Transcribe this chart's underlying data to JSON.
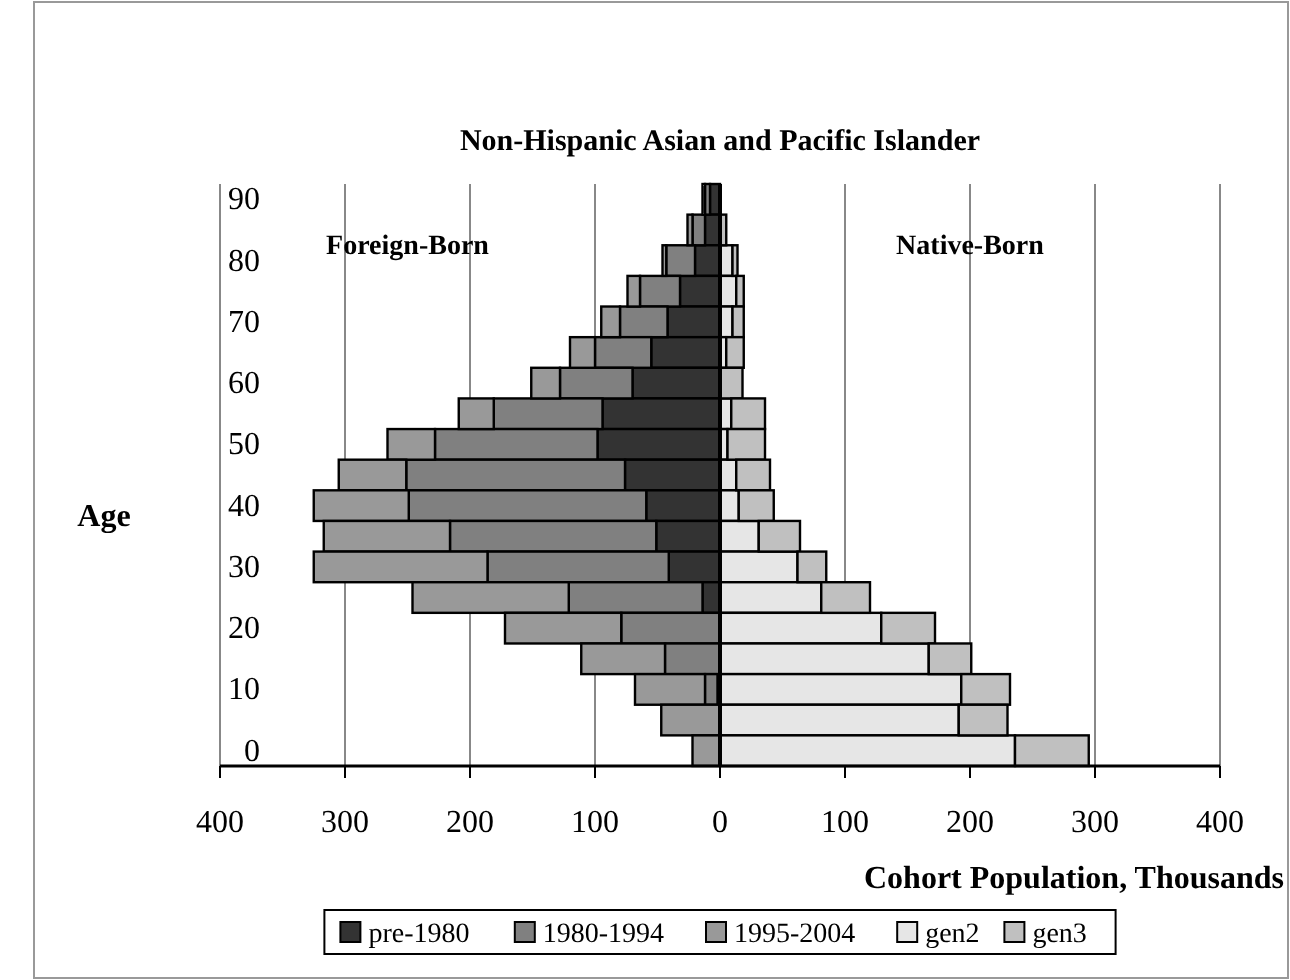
{
  "chart_data": {
    "type": "bar",
    "orientation": "horizontal",
    "stacked": true,
    "title": "Non-Hispanic Asian and Pacific Islander",
    "xlabel": "Cohort Population, Thousands",
    "ylabel": "Age",
    "annotations": [
      "Foreign-Born",
      "Native-Born"
    ],
    "categories": [
      "90",
      null,
      "80",
      null,
      "70",
      null,
      "60",
      null,
      "50",
      null,
      "40",
      null,
      "30",
      null,
      "20",
      null,
      "10",
      null,
      "0"
    ],
    "series": [
      {
        "name": "pre-1980",
        "color": "#333333",
        "values": [
          -8,
          -12,
          -20,
          -32,
          -42,
          -55,
          -70,
          -94,
          -98,
          -76,
          -59,
          -51,
          -41,
          -14,
          0,
          0,
          -2,
          0,
          0
        ]
      },
      {
        "name": "1980-1994",
        "color": "#808080",
        "values": [
          -4,
          -10,
          -23,
          -32,
          -38,
          -45,
          -58,
          -87,
          -130,
          -175,
          -190,
          -165,
          -145,
          -107,
          -79,
          -44,
          -10,
          0,
          0
        ]
      },
      {
        "name": "1995-2004",
        "color": "#999999",
        "values": [
          -2,
          -4,
          -3,
          -10,
          -15,
          -20,
          -23,
          -28,
          -38,
          -54,
          -76,
          -101,
          -139,
          -125,
          -93,
          -67,
          -56,
          -47,
          -22
        ]
      },
      {
        "name": "gen2",
        "color": "#e6e6e6",
        "values": [
          0,
          0,
          10,
          13,
          10,
          5,
          null,
          9,
          6,
          13,
          15,
          31,
          62,
          81,
          129,
          167,
          193,
          191,
          236
        ]
      },
      {
        "name": "gen3",
        "color": "#c0c0c0",
        "values": [
          null,
          5,
          4,
          6,
          9,
          14,
          18,
          27,
          30,
          27,
          28,
          33,
          23,
          39,
          43,
          34,
          39,
          39,
          59
        ]
      }
    ],
    "xlim": [
      -400,
      400
    ],
    "xticks": [
      {
        "value": -400,
        "label": "400"
      },
      {
        "value": -300,
        "label": "300"
      },
      {
        "value": -200,
        "label": "200"
      },
      {
        "value": -100,
        "label": "100"
      },
      0,
      100,
      200,
      300,
      400
    ],
    "grid": "x",
    "legend": "bottom"
  }
}
